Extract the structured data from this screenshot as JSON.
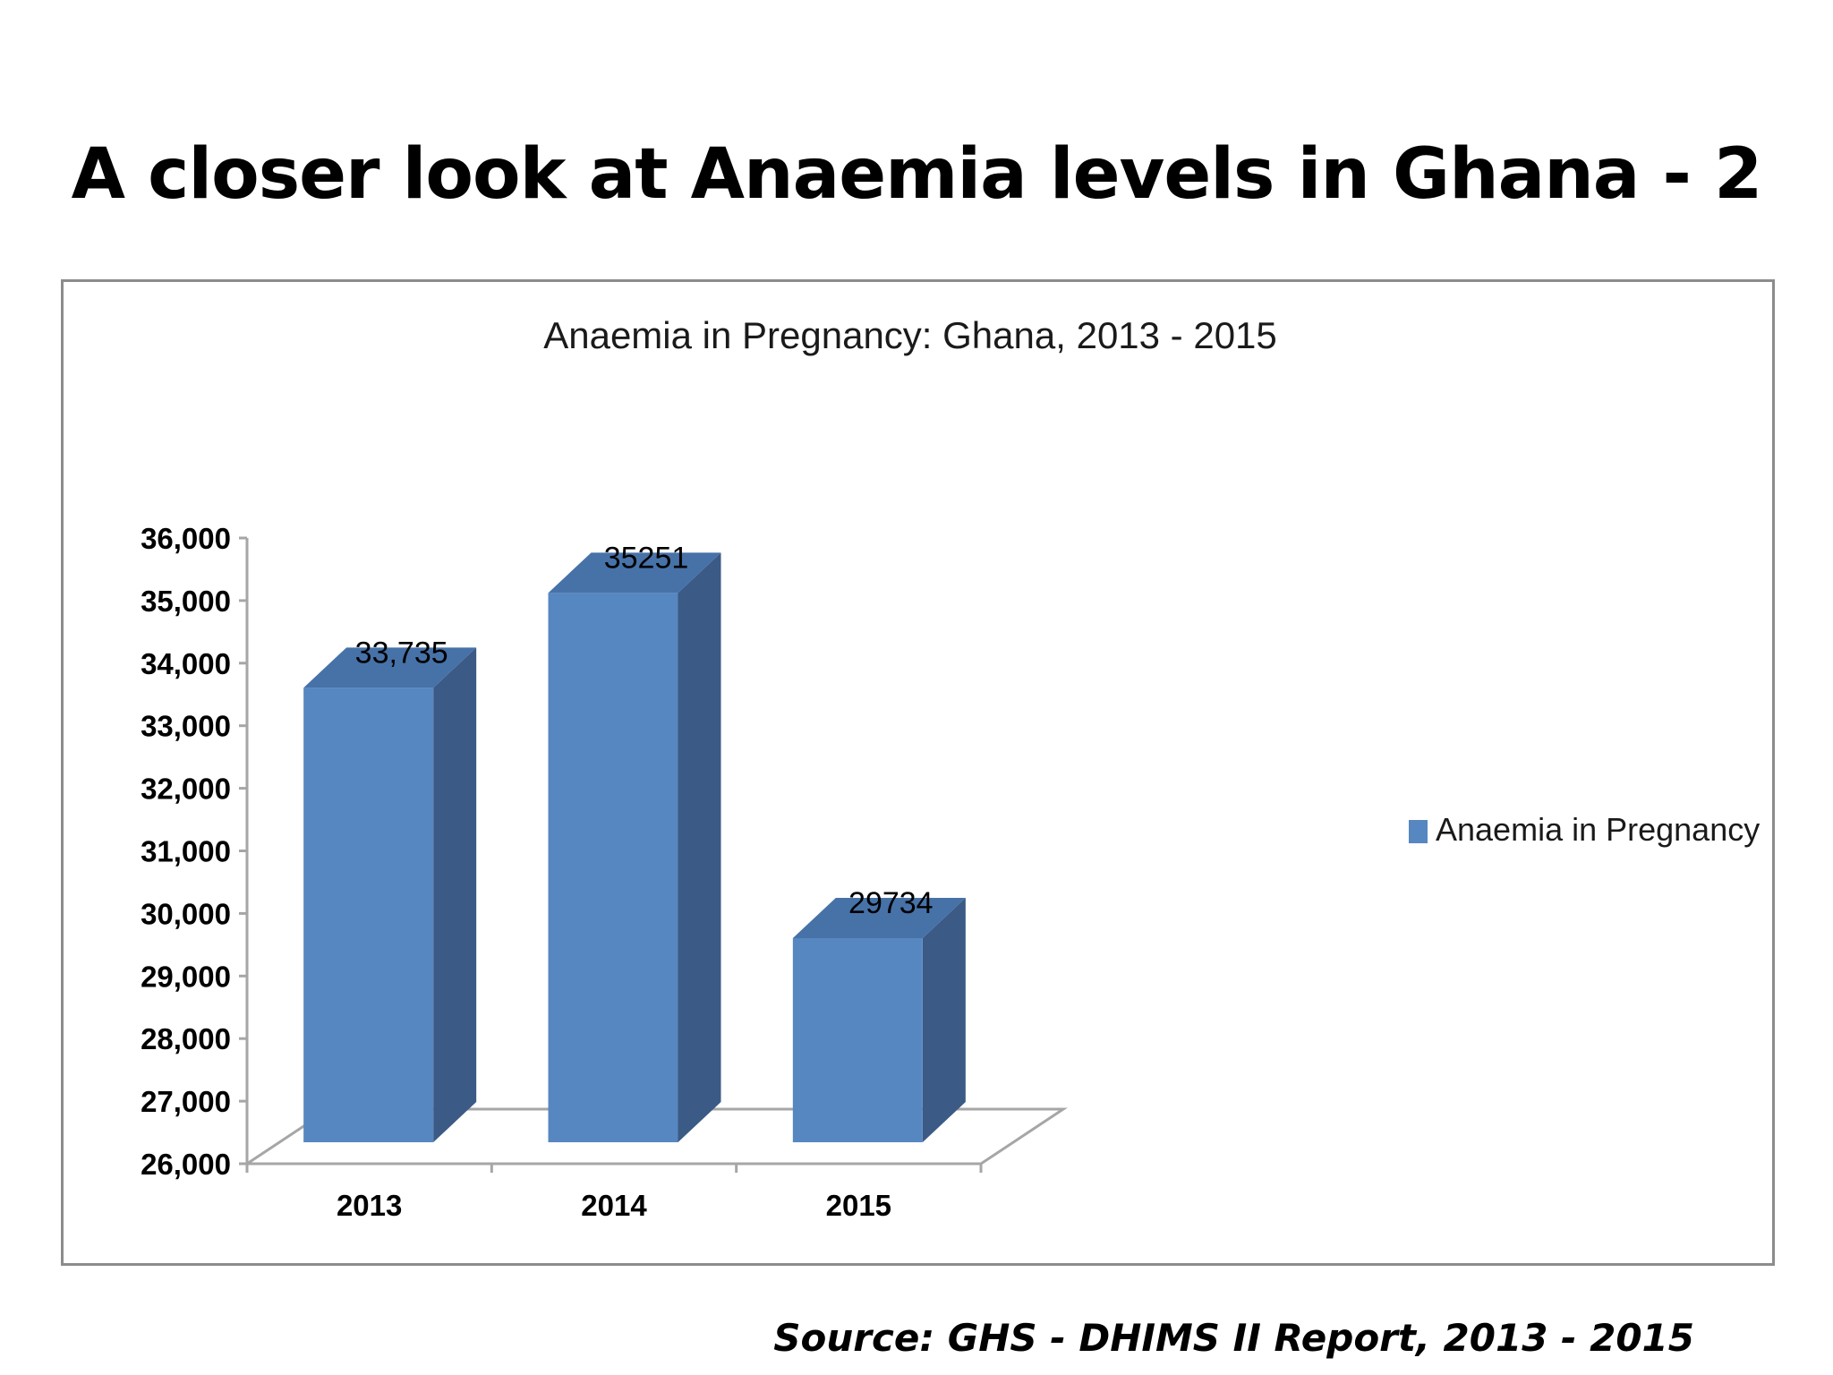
{
  "page": {
    "title": "A closer look at Anaemia levels in Ghana - 2",
    "source": "Source: GHS - DHIMS II Report, 2013 - 2015"
  },
  "chart_data": {
    "type": "bar",
    "style": "3d-column",
    "title": "Anaemia in Pregnancy: Ghana, 2013 - 2015",
    "categories": [
      "2013",
      "2014",
      "2015"
    ],
    "series": [
      {
        "name": "Anaemia in Pregnancy",
        "values": [
          33735,
          35251,
          29734
        ],
        "color": "#5787c0"
      }
    ],
    "data_labels": [
      "33,735",
      "35251",
      "29734"
    ],
    "ylim": [
      26000,
      36000
    ],
    "yticks": [
      26000,
      27000,
      28000,
      29000,
      30000,
      31000,
      32000,
      33000,
      34000,
      35000,
      36000
    ],
    "ytick_labels": [
      "26,000",
      "27,000",
      "28,000",
      "29,000",
      "30,000",
      "31,000",
      "32,000",
      "33,000",
      "34,000",
      "35,000",
      "36,000"
    ],
    "xlabel": "",
    "ylabel": "",
    "legend": "right",
    "grid": false,
    "colors": {
      "front": "#5787c0",
      "side": "#3b5a85",
      "top": "#4672a8",
      "floor": "#a6a6a6"
    }
  }
}
